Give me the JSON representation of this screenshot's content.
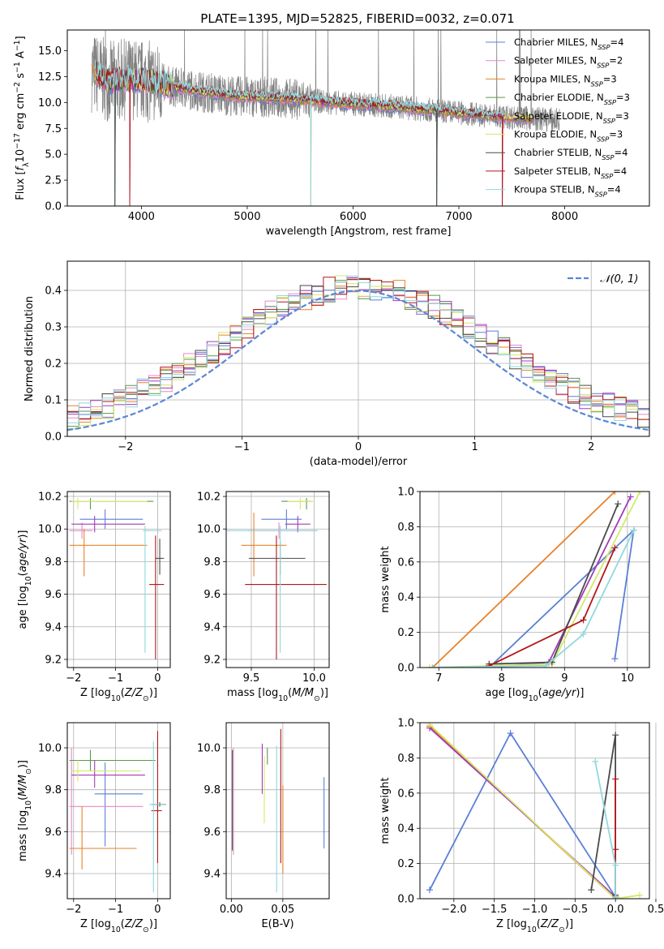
{
  "figure": {
    "title": "PLATE=1395, MJD=52825, FIBERID=0032, z=0.071"
  },
  "chart_data": [
    {
      "id": "spectrum",
      "type": "line",
      "title": "PLATE=1395, MJD=52825, FIBERID=0032, z=0.071",
      "xlabel": "wavelength [Angstrom, rest frame]",
      "ylabel": "Flux [f_λ 10^-17 erg cm^-2 s^-1 A^-1]",
      "xlim": [
        3300,
        8800
      ],
      "ylim": [
        0,
        17
      ],
      "xticks": [
        4000,
        5000,
        6000,
        7000,
        8000
      ],
      "yticks": [
        0.0,
        2.5,
        5.0,
        7.5,
        10.0,
        12.5,
        15.0
      ],
      "grid": false,
      "legend_position": "top-right",
      "data_series_name": "",
      "data_anchors": [
        [
          3530,
          13.0
        ],
        [
          3700,
          12.0
        ],
        [
          3900,
          12.3
        ],
        [
          4100,
          12.0
        ],
        [
          4300,
          11.5
        ],
        [
          4600,
          11.0
        ],
        [
          4900,
          10.6
        ],
        [
          5200,
          10.5
        ],
        [
          5500,
          10.3
        ],
        [
          5800,
          10.0
        ],
        [
          6100,
          9.8
        ],
        [
          6400,
          9.6
        ],
        [
          6700,
          9.3
        ],
        [
          7000,
          9.0
        ],
        [
          7300,
          8.7
        ],
        [
          7600,
          8.5
        ],
        [
          7950,
          8.3
        ]
      ],
      "series": [
        {
          "name": "Chabrier MILES",
          "n_ssp": "4",
          "color": "#5b7fd6"
        },
        {
          "name": "Salpeter MILES",
          "n_ssp": "2",
          "color": "#e589c6"
        },
        {
          "name": "Kroupa MILES",
          "n_ssp": "3",
          "color": "#e8822a"
        },
        {
          "name": "Chabrier ELODIE",
          "n_ssp": "3",
          "color": "#5b9a4a"
        },
        {
          "name": "Salpeter ELODIE",
          "n_ssp": "3",
          "color": "#a23bb7"
        },
        {
          "name": "Kroupa ELODIE",
          "n_ssp": "3",
          "color": "#d3e86a"
        },
        {
          "name": "Chabrier STELIB",
          "n_ssp": "4",
          "color": "#4a4a4a"
        },
        {
          "name": "Salpeter STELIB",
          "n_ssp": "4",
          "color": "#b2181b"
        },
        {
          "name": "Kroupa STELIB",
          "n_ssp": "4",
          "color": "#8fd9dd"
        }
      ]
    },
    {
      "id": "residuals",
      "type": "line",
      "xlabel": "(data-model)/error",
      "ylabel": "Normed distribution",
      "xlim": [
        -2.5,
        2.5
      ],
      "ylim": [
        0,
        0.48
      ],
      "xticks": [
        -2,
        -1,
        0,
        1,
        2
      ],
      "yticks": [
        0.0,
        0.1,
        0.2,
        0.3,
        0.4
      ],
      "grid": true,
      "legend_position": "top-right",
      "legend_label": "𝒩(0, 1)",
      "bin_width": 0.1,
      "bin_start": -2.5,
      "gaussian": {
        "mean": 0,
        "sigma": 1
      }
    },
    {
      "id": "age-vs-Z",
      "type": "scatter",
      "xlabel": "Z [log10(Z/Z☉)]",
      "ylabel": "age [log10(age/yr)]",
      "xlim": [
        -2.15,
        0.3
      ],
      "ylim": [
        9.15,
        10.23
      ],
      "xticks": [
        -2,
        -1,
        0
      ],
      "yticks": [
        9.2,
        9.4,
        9.6,
        9.8,
        10.0,
        10.2
      ],
      "grid": true,
      "points": [
        {
          "series": "Chabrier MILES",
          "x": -1.25,
          "xerr": [
            0.6,
            0.9
          ],
          "y": 10.06,
          "yerr": [
            0.06,
            0.06
          ]
        },
        {
          "series": "Salpeter MILES",
          "x": -1.8,
          "xerr": [
            0.3,
            0.25
          ],
          "y": 9.99,
          "yerr": [
            0.05,
            0.05
          ]
        },
        {
          "series": "Kroupa MILES",
          "x": -1.75,
          "xerr": [
            0.35,
            1.5
          ],
          "y": 9.9,
          "yerr": [
            0.19,
            0.1
          ]
        },
        {
          "series": "Chabrier ELODIE",
          "x": -1.6,
          "xerr": [
            0.5,
            1.5
          ],
          "y": 10.17,
          "yerr": [
            0.05,
            0.02
          ]
        },
        {
          "series": "Salpeter ELODIE",
          "x": -1.5,
          "xerr": [
            0.55,
            1.2
          ],
          "y": 10.03,
          "yerr": [
            0.05,
            0.05
          ]
        },
        {
          "series": "Kroupa ELODIE",
          "x": -1.9,
          "xerr": [
            0.15,
            1.65
          ],
          "y": 10.17,
          "yerr": [
            0.05,
            0.02
          ]
        },
        {
          "series": "Chabrier STELIB",
          "x": 0.05,
          "xerr": [
            0.1,
            0.1
          ],
          "y": 9.82,
          "yerr": [
            0.1,
            0.12
          ]
        },
        {
          "series": "Salpeter STELIB",
          "x": -0.05,
          "xerr": [
            0.15,
            0.2
          ],
          "y": 9.66,
          "yerr": [
            0.46,
            0.3
          ]
        },
        {
          "series": "Kroupa STELIB",
          "x": -0.3,
          "xerr": [
            0.05,
            0.4
          ],
          "y": 9.99,
          "yerr": [
            0.75,
            0.03
          ]
        }
      ]
    },
    {
      "id": "age-vs-mass",
      "type": "scatter",
      "xlabel": "mass [log10(M/M☉)]",
      "xlim": [
        9.3,
        10.12
      ],
      "ylim": [
        9.15,
        10.23
      ],
      "xticks": [
        9.5,
        10.0
      ],
      "yticks": [
        9.2,
        9.4,
        9.6,
        9.8,
        10.0,
        10.2
      ],
      "grid": true,
      "points": [
        {
          "series": "Chabrier MILES",
          "x": 9.78,
          "xerr": [
            0.2,
            0.12
          ],
          "y": 10.06,
          "yerr": [
            0.06,
            0.06
          ]
        },
        {
          "series": "Salpeter MILES",
          "x": 9.72,
          "xerr": [
            0.25,
            0.3
          ],
          "y": 9.99,
          "yerr": [
            0.05,
            0.05
          ]
        },
        {
          "series": "Kroupa MILES",
          "x": 9.52,
          "xerr": [
            0.1,
            0.26
          ],
          "y": 9.9,
          "yerr": [
            0.19,
            0.2
          ]
        },
        {
          "series": "Chabrier ELODIE",
          "x": 9.94,
          "xerr": [
            0.2,
            0.05
          ],
          "y": 10.17,
          "yerr": [
            0.05,
            0.02
          ]
        },
        {
          "series": "Salpeter ELODIE",
          "x": 9.87,
          "xerr": [
            0.1,
            0.1
          ],
          "y": 10.03,
          "yerr": [
            0.05,
            0.05
          ]
        },
        {
          "series": "Kroupa ELODIE",
          "x": 9.89,
          "xerr": [
            0.1,
            0.1
          ],
          "y": 10.17,
          "yerr": [
            0.05,
            0.02
          ]
        },
        {
          "series": "Chabrier STELIB",
          "x": 9.73,
          "xerr": [
            0.25,
            0.2
          ],
          "y": 9.82,
          "yerr": [
            0.1,
            0.1
          ]
        },
        {
          "series": "Salpeter STELIB",
          "x": 9.7,
          "xerr": [
            0.25,
            0.4
          ],
          "y": 9.66,
          "yerr": [
            0.46,
            0.3
          ]
        },
        {
          "series": "Kroupa STELIB",
          "x": 9.73,
          "xerr": [
            0.45,
            0.3
          ],
          "y": 9.99,
          "yerr": [
            0.75,
            0.03
          ]
        }
      ]
    },
    {
      "id": "massweight-vs-age",
      "type": "line",
      "xlabel": "age [log10(age/yr)]",
      "ylabel": "mass weight",
      "xlim": [
        6.7,
        10.35
      ],
      "ylim": [
        0,
        1
      ],
      "xticks": [
        7,
        8,
        9,
        10
      ],
      "yticks": [
        0.0,
        0.2,
        0.4,
        0.6,
        0.8,
        1.0
      ],
      "grid": true,
      "lines": [
        {
          "series": "Chabrier MILES",
          "x": [
            9.8,
            10.1,
            7.8,
            6.9
          ],
          "y": [
            0.05,
            0.78,
            0.0,
            0.0
          ]
        },
        {
          "series": "Kroupa MILES",
          "x": [
            6.9,
            9.8
          ],
          "y": [
            0.0,
            1.0
          ]
        },
        {
          "series": "Salpeter ELODIE",
          "x": [
            7.8,
            8.75,
            10.05
          ],
          "y": [
            0.0,
            0.03,
            0.97
          ]
        },
        {
          "series": "Kroupa ELODIE",
          "x": [
            6.85,
            8.8,
            10.2
          ],
          "y": [
            0.0,
            0.02,
            1.0
          ]
        },
        {
          "series": "Chabrier STELIB",
          "x": [
            7.8,
            8.8,
            9.85
          ],
          "y": [
            0.02,
            0.03,
            0.93
          ]
        },
        {
          "series": "Salpeter STELIB",
          "x": [
            7.8,
            9.3,
            9.8
          ],
          "y": [
            0.01,
            0.27,
            0.68
          ]
        },
        {
          "series": "Kroupa STELIB",
          "x": [
            6.9,
            8.7,
            9.3,
            10.1
          ],
          "y": [
            0.0,
            0.01,
            0.19,
            0.78
          ]
        }
      ]
    },
    {
      "id": "mass-vs-Z",
      "type": "scatter",
      "xlabel": "Z [log10(Z/Z☉)]",
      "ylabel": "mass [log10(M/M☉)]",
      "xlim": [
        -2.15,
        0.3
      ],
      "ylim": [
        9.28,
        10.12
      ],
      "xticks": [
        -2,
        -1,
        0
      ],
      "yticks": [
        9.4,
        9.6,
        9.8,
        10.0
      ],
      "grid": true,
      "points": [
        {
          "series": "Chabrier MILES",
          "x": -1.25,
          "xerr": [
            0.25,
            0.9
          ],
          "y": 9.78,
          "yerr": [
            0.25,
            0.15
          ]
        },
        {
          "series": "Salpeter MILES",
          "x": -2.05,
          "xerr": [
            0.05,
            1.7
          ],
          "y": 9.72,
          "yerr": [
            0.23,
            0.28
          ]
        },
        {
          "series": "Kroupa MILES",
          "x": -1.8,
          "xerr": [
            0.3,
            1.3
          ],
          "y": 9.52,
          "yerr": [
            0.1,
            0.2
          ]
        },
        {
          "series": "Chabrier ELODIE",
          "x": -1.6,
          "xerr": [
            0.5,
            1.55
          ],
          "y": 9.94,
          "yerr": [
            0.05,
            0.05
          ]
        },
        {
          "series": "Salpeter ELODIE",
          "x": -1.5,
          "xerr": [
            0.55,
            1.2
          ],
          "y": 9.87,
          "yerr": [
            0.06,
            0.07
          ]
        },
        {
          "series": "Kroupa ELODIE",
          "x": -1.9,
          "xerr": [
            0.15,
            1.5
          ],
          "y": 9.89,
          "yerr": [
            0.05,
            0.05
          ]
        },
        {
          "series": "Chabrier STELIB",
          "x": 0.05,
          "xerr": [
            0.2,
            0.15
          ],
          "y": 9.73,
          "yerr": [
            0.01,
            0.01
          ]
        },
        {
          "series": "Salpeter STELIB",
          "x": 0.0,
          "xerr": [
            0.15,
            0.1
          ],
          "y": 9.7,
          "yerr": [
            0.25,
            0.38
          ]
        },
        {
          "series": "Kroupa STELIB",
          "x": -0.1,
          "xerr": [
            0.1,
            0.3
          ],
          "y": 9.73,
          "yerr": [
            0.42,
            0.3
          ]
        }
      ]
    },
    {
      "id": "mass-vs-EBV",
      "type": "scatter",
      "xlabel": "E(B-V)",
      "xlim": [
        -0.005,
        0.095
      ],
      "ylim": [
        9.28,
        10.12
      ],
      "xticks": [
        0.0,
        0.05
      ],
      "yticks": [
        9.4,
        9.6,
        9.8,
        10.0
      ],
      "grid": true,
      "points": [
        {
          "series": "Chabrier MILES",
          "x": 0.09,
          "xerr": [
            0,
            0
          ],
          "y": 9.7,
          "yerr": [
            0.18,
            0.16
          ]
        },
        {
          "series": "Salpeter MILES",
          "x": 0.002,
          "xerr": [
            0,
            0
          ],
          "y": 9.72,
          "yerr": [
            0.23,
            0.28
          ]
        },
        {
          "series": "Kroupa MILES",
          "x": 0.05,
          "xerr": [
            0,
            0
          ],
          "y": 9.62,
          "yerr": [
            0.22,
            0.2
          ]
        },
        {
          "series": "Chabrier ELODIE",
          "x": 0.035,
          "xerr": [
            0,
            0
          ],
          "y": 9.96,
          "yerr": [
            0.04,
            0.04
          ]
        },
        {
          "series": "Salpeter ELODIE",
          "x": 0.03,
          "xerr": [
            0,
            0
          ],
          "y": 9.9,
          "yerr": [
            0.12,
            0.12
          ]
        },
        {
          "series": "Kroupa ELODIE",
          "x": 0.032,
          "xerr": [
            0,
            0
          ],
          "y": 9.8,
          "yerr": [
            0.16,
            0.16
          ]
        },
        {
          "series": "Chabrier STELIB",
          "x": 0.001,
          "xerr": [
            0,
            0
          ],
          "y": 9.75,
          "yerr": [
            0.24,
            0.24
          ]
        },
        {
          "series": "Salpeter STELIB",
          "x": 0.048,
          "xerr": [
            0,
            0
          ],
          "y": 9.77,
          "yerr": [
            0.32,
            0.32
          ]
        },
        {
          "series": "Kroupa STELIB",
          "x": 0.044,
          "xerr": [
            0,
            0
          ],
          "y": 9.66,
          "yerr": [
            0.35,
            0.35
          ]
        }
      ]
    },
    {
      "id": "massweight-vs-Z",
      "type": "line",
      "xlabel": "Z [log10(Z/Z☉)]",
      "ylabel": "mass weight",
      "xlim": [
        -2.42,
        0.42
      ],
      "ylim": [
        0,
        1
      ],
      "xticks": [
        -2.0,
        -1.5,
        -1.0,
        -0.5,
        0.0,
        0.5
      ],
      "yticks": [
        0.0,
        0.2,
        0.4,
        0.6,
        0.8,
        1.0
      ],
      "grid": true,
      "lines": [
        {
          "series": "Chabrier MILES",
          "x": [
            -2.3,
            -1.3,
            0.0
          ],
          "y": [
            0.05,
            0.94,
            0.01
          ]
        },
        {
          "series": "Kroupa MILES",
          "x": [
            -2.3,
            0.0
          ],
          "y": [
            0.98,
            0.0
          ]
        },
        {
          "series": "Salpeter ELODIE",
          "x": [
            -2.3,
            0.0
          ],
          "y": [
            0.97,
            0.01
          ]
        },
        {
          "series": "Kroupa ELODIE",
          "x": [
            -2.3,
            0.0,
            0.3
          ],
          "y": [
            0.99,
            0.0,
            0.02
          ]
        },
        {
          "series": "Chabrier STELIB",
          "x": [
            -0.3,
            0.0,
            0.0
          ],
          "y": [
            0.05,
            0.93,
            0.02
          ]
        },
        {
          "series": "Salpeter STELIB",
          "x": [
            0.0,
            0.0,
            0.0
          ],
          "y": [
            0.68,
            0.28,
            0.01
          ]
        },
        {
          "series": "Kroupa STELIB",
          "x": [
            -0.25,
            0.0,
            0.0
          ],
          "y": [
            0.78,
            0.19,
            0.01
          ]
        }
      ]
    }
  ]
}
